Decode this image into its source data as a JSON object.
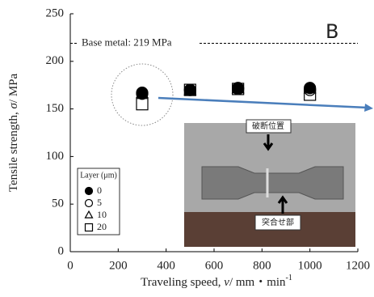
{
  "chart_data": {
    "type": "scatter",
    "xlabel_parts": [
      "Traveling speed, ",
      "v",
      "/ mm・min",
      "-1"
    ],
    "ylabel_parts": [
      "Tensile strength, ",
      "σ",
      "/ MPa"
    ],
    "xlim": [
      0,
      1200
    ],
    "xticks": [
      0,
      200,
      400,
      600,
      800,
      1000,
      1200
    ],
    "ylim": [
      0,
      250
    ],
    "yticks": [
      0,
      50,
      100,
      150,
      200,
      250
    ],
    "legend_title": "Layer (μm)",
    "legend": "lower left",
    "series": [
      {
        "name": "0",
        "marker": "circle-filled",
        "color": "#000000",
        "x": [
          300,
          500,
          700,
          1000
        ],
        "values": [
          167,
          170,
          172,
          172
        ]
      },
      {
        "name": "5",
        "marker": "circle-open",
        "color": "#000000",
        "x": [
          300,
          500,
          700,
          1000
        ],
        "values": [
          166,
          170,
          171,
          170
        ]
      },
      {
        "name": "10",
        "marker": "triangle-open",
        "color": "#000000",
        "x": [
          300,
          500,
          700,
          1000
        ],
        "values": [
          166,
          169,
          171,
          171
        ]
      },
      {
        "name": "20",
        "marker": "square-open",
        "color": "#000000",
        "x": [
          300,
          500,
          700,
          1000
        ],
        "values": [
          155,
          170,
          171,
          165
        ]
      }
    ],
    "hlines": [
      {
        "value": 219,
        "label": "Base metal: 219 MPa"
      }
    ],
    "panel_label": "B",
    "inset_labels": [
      "破断位置",
      "突合せ部"
    ]
  }
}
